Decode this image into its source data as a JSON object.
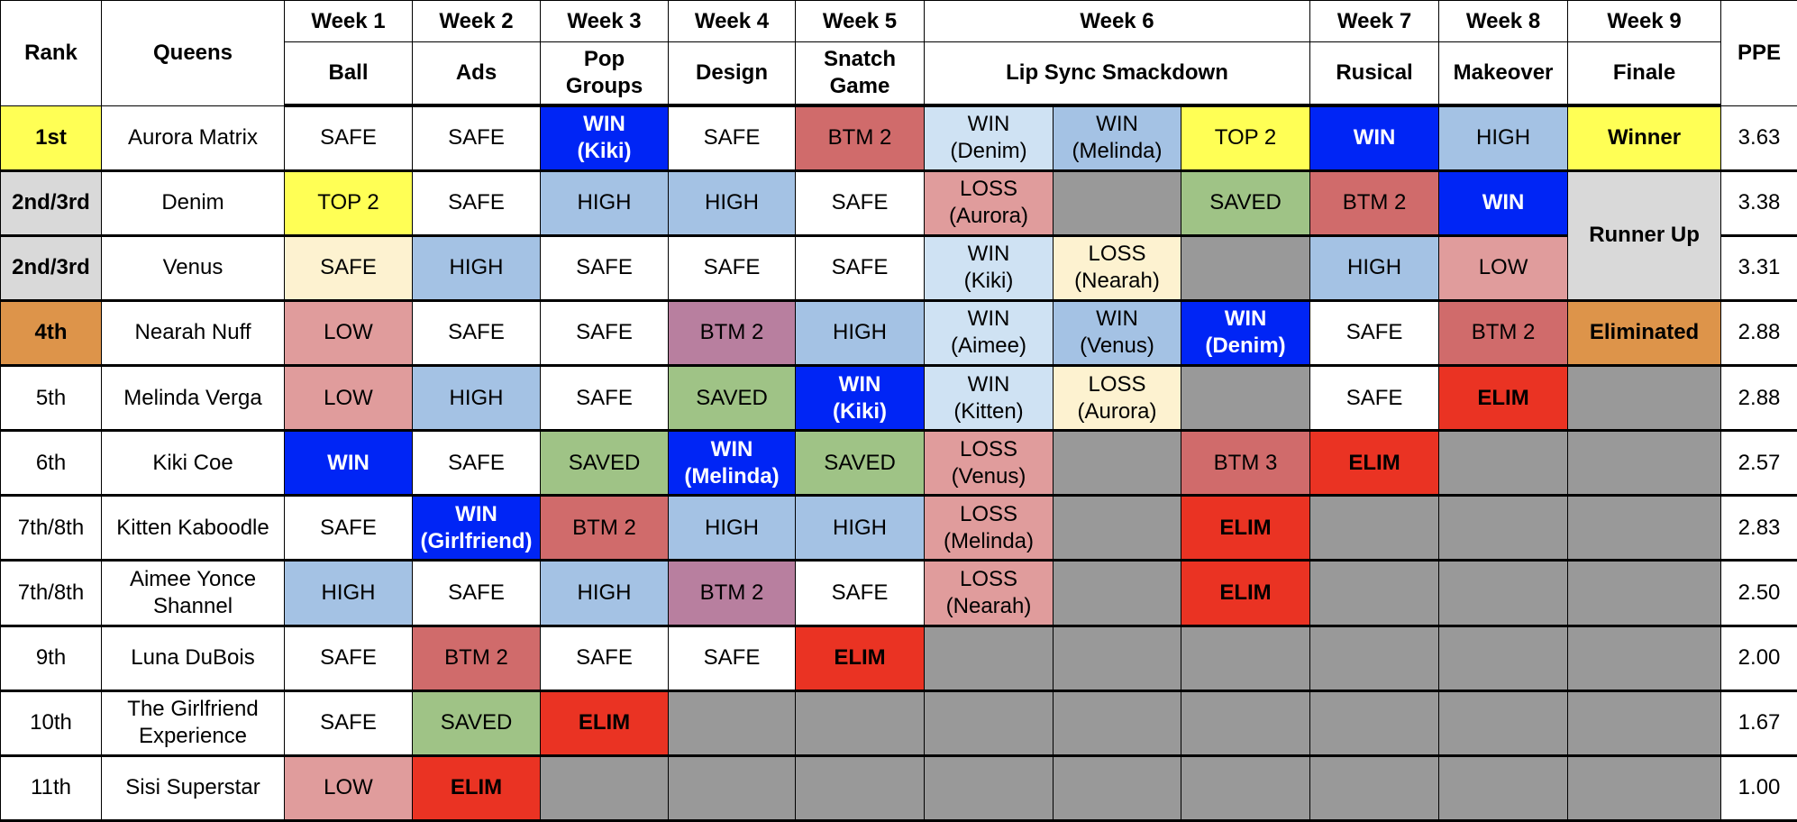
{
  "header": {
    "rank": "Rank",
    "queens": "Queens",
    "ppe": "PPE",
    "weeks": [
      {
        "week": "Week 1",
        "challenge": "Ball",
        "span": 1
      },
      {
        "week": "Week 2",
        "challenge": "Ads",
        "span": 1
      },
      {
        "week": "Week 3",
        "challenge": "Pop\nGroups",
        "span": 1
      },
      {
        "week": "Week 4",
        "challenge": "Design",
        "span": 1
      },
      {
        "week": "Week 5",
        "challenge": "Snatch\nGame",
        "span": 1
      },
      {
        "week": "Week 6",
        "challenge": "Lip Sync Smackdown",
        "span": 3
      },
      {
        "week": "Week 7",
        "challenge": "Rusical",
        "span": 1
      },
      {
        "week": "Week 8",
        "challenge": "Makeover",
        "span": 1
      },
      {
        "week": "Week 9",
        "challenge": "Finale",
        "span": 1
      }
    ]
  },
  "colors": {
    "win": "#0025f5",
    "elim": "#ea3323",
    "high": "#a4c2e4",
    "low": "#e09c9c",
    "btm": "#d06b6b",
    "btm_mauve": "#b87f9f",
    "saved": "#9fc386",
    "top2": "#ffff55",
    "out": "#999999",
    "runner_up": "#d9d9d9",
    "eliminated": "#dd944a"
  },
  "rows": [
    {
      "rank": "1st",
      "rank_style": "y b",
      "queen": "Aurora Matrix",
      "ppe": "3.63",
      "cells": [
        [
          "SAFE",
          "w"
        ],
        [
          "SAFE",
          "w"
        ],
        [
          "WIN\n(Kiki)",
          "win"
        ],
        [
          "SAFE",
          "w"
        ],
        [
          "BTM 2",
          "bt"
        ],
        [
          "WIN\n(Denim)",
          "pb"
        ],
        [
          "WIN\n(Melinda)",
          "lb"
        ],
        [
          "TOP 2",
          "y"
        ],
        [
          "WIN",
          "win"
        ],
        [
          "HIGH",
          "lb"
        ],
        [
          "Winner",
          "y b"
        ]
      ]
    },
    {
      "rank": "2nd/3rd",
      "rank_style": "lg b",
      "queen": "Denim",
      "ppe": "3.38",
      "cells": [
        [
          "TOP 2",
          "y"
        ],
        [
          "SAFE",
          "w"
        ],
        [
          "HIGH",
          "lb"
        ],
        [
          "HIGH",
          "lb"
        ],
        [
          "SAFE",
          "w"
        ],
        [
          "LOSS\n(Aurora)",
          "pk"
        ],
        [
          "",
          "no"
        ],
        [
          "SAVED",
          "gr"
        ],
        [
          "BTM 2",
          "bt"
        ],
        [
          "WIN",
          "win"
        ],
        [
          "Runner Up",
          "lg b",
          2
        ]
      ]
    },
    {
      "rank": "2nd/3rd",
      "rank_style": "lg b",
      "queen": "Venus",
      "ppe": "3.31",
      "cells": [
        [
          "SAFE",
          "cr"
        ],
        [
          "HIGH",
          "lb"
        ],
        [
          "SAFE",
          "w"
        ],
        [
          "SAFE",
          "w"
        ],
        [
          "SAFE",
          "w"
        ],
        [
          "WIN\n(Kiki)",
          "pb"
        ],
        [
          "LOSS\n(Nearah)",
          "cr"
        ],
        [
          "",
          "no"
        ],
        [
          "HIGH",
          "lb"
        ],
        [
          "LOW",
          "pk"
        ]
      ]
    },
    {
      "rank": "4th",
      "rank_style": "or b",
      "queen": "Nearah Nuff",
      "ppe": "2.88",
      "cells": [
        [
          "LOW",
          "pk"
        ],
        [
          "SAFE",
          "w"
        ],
        [
          "SAFE",
          "w"
        ],
        [
          "BTM 2",
          "mv"
        ],
        [
          "HIGH",
          "lb"
        ],
        [
          "WIN\n(Aimee)",
          "pb"
        ],
        [
          "WIN\n(Venus)",
          "lb"
        ],
        [
          "WIN\n(Denim)",
          "win"
        ],
        [
          "SAFE",
          "w"
        ],
        [
          "BTM 2",
          "bt"
        ],
        [
          "Eliminated",
          "or b"
        ]
      ]
    },
    {
      "rank": "5th",
      "rank_style": "w",
      "queen": "Melinda Verga",
      "ppe": "2.88",
      "cells": [
        [
          "LOW",
          "pk"
        ],
        [
          "HIGH",
          "lb"
        ],
        [
          "SAFE",
          "w"
        ],
        [
          "SAVED",
          "gr"
        ],
        [
          "WIN\n(Kiki)",
          "win"
        ],
        [
          "WIN\n(Kitten)",
          "pb"
        ],
        [
          "LOSS\n(Aurora)",
          "cr"
        ],
        [
          "",
          "no"
        ],
        [
          "SAFE",
          "w"
        ],
        [
          "ELIM",
          "el"
        ],
        [
          "",
          "no"
        ]
      ]
    },
    {
      "rank": "6th",
      "rank_style": "w",
      "queen": "Kiki Coe",
      "ppe": "2.57",
      "cells": [
        [
          "WIN",
          "win"
        ],
        [
          "SAFE",
          "w"
        ],
        [
          "SAVED",
          "gr"
        ],
        [
          "WIN\n(Melinda)",
          "win"
        ],
        [
          "SAVED",
          "gr"
        ],
        [
          "LOSS\n(Venus)",
          "pk"
        ],
        [
          "",
          "no"
        ],
        [
          "BTM 3",
          "bt"
        ],
        [
          "ELIM",
          "el"
        ],
        [
          "",
          "no"
        ],
        [
          "",
          "no"
        ]
      ]
    },
    {
      "rank": "7th/8th",
      "rank_style": "w",
      "queen": "Kitten Kaboodle",
      "ppe": "2.83",
      "cells": [
        [
          "SAFE",
          "w"
        ],
        [
          "WIN\n(Girlfriend)",
          "win"
        ],
        [
          "BTM 2",
          "bt"
        ],
        [
          "HIGH",
          "lb"
        ],
        [
          "HIGH",
          "lb"
        ],
        [
          "LOSS\n(Melinda)",
          "pk"
        ],
        [
          "",
          "no"
        ],
        [
          "ELIM",
          "el"
        ],
        [
          "",
          "no"
        ],
        [
          "",
          "no"
        ],
        [
          "",
          "no"
        ]
      ]
    },
    {
      "rank": "7th/8th",
      "rank_style": "w",
      "queen": "Aimee Yonce\nShannel",
      "ppe": "2.50",
      "cells": [
        [
          "HIGH",
          "lb"
        ],
        [
          "SAFE",
          "w"
        ],
        [
          "HIGH",
          "lb"
        ],
        [
          "BTM 2",
          "mv"
        ],
        [
          "SAFE",
          "w"
        ],
        [
          "LOSS\n(Nearah)",
          "pk"
        ],
        [
          "",
          "no"
        ],
        [
          "ELIM",
          "el"
        ],
        [
          "",
          "no"
        ],
        [
          "",
          "no"
        ],
        [
          "",
          "no"
        ]
      ]
    },
    {
      "rank": "9th",
      "rank_style": "w",
      "queen": "Luna DuBois",
      "ppe": "2.00",
      "cells": [
        [
          "SAFE",
          "w"
        ],
        [
          "BTM 2",
          "bt"
        ],
        [
          "SAFE",
          "w"
        ],
        [
          "SAFE",
          "w"
        ],
        [
          "ELIM",
          "el"
        ],
        [
          "",
          "no"
        ],
        [
          "",
          "no"
        ],
        [
          "",
          "no"
        ],
        [
          "",
          "no"
        ],
        [
          "",
          "no"
        ],
        [
          "",
          "no"
        ]
      ]
    },
    {
      "rank": "10th",
      "rank_style": "w",
      "queen": "The Girlfriend\nExperience",
      "ppe": "1.67",
      "cells": [
        [
          "SAFE",
          "w"
        ],
        [
          "SAVED",
          "gr"
        ],
        [
          "ELIM",
          "el"
        ],
        [
          "",
          "no"
        ],
        [
          "",
          "no"
        ],
        [
          "",
          "no"
        ],
        [
          "",
          "no"
        ],
        [
          "",
          "no"
        ],
        [
          "",
          "no"
        ],
        [
          "",
          "no"
        ],
        [
          "",
          "no"
        ]
      ]
    },
    {
      "rank": "11th",
      "rank_style": "w",
      "queen": "Sisi Superstar",
      "ppe": "1.00",
      "cells": [
        [
          "LOW",
          "pk"
        ],
        [
          "ELIM",
          "el"
        ],
        [
          "",
          "no"
        ],
        [
          "",
          "no"
        ],
        [
          "",
          "no"
        ],
        [
          "",
          "no"
        ],
        [
          "",
          "no"
        ],
        [
          "",
          "no"
        ],
        [
          "",
          "no"
        ],
        [
          "",
          "no"
        ],
        [
          "",
          "no"
        ]
      ]
    }
  ]
}
